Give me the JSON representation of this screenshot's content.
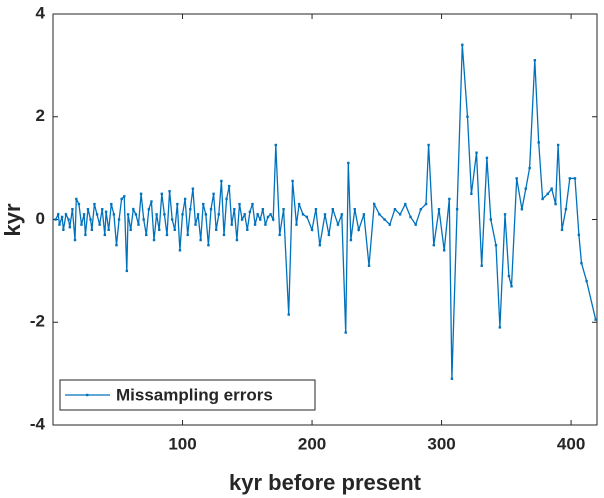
{
  "chart_data": {
    "type": "line",
    "xlabel": "kyr before present",
    "ylabel": "kyr",
    "xlim": [
      0,
      420
    ],
    "ylim": [
      -4,
      4
    ],
    "xticks": [
      100,
      200,
      300,
      400
    ],
    "yticks": [
      -4,
      -2,
      0,
      2,
      4
    ],
    "legend": "lower left",
    "series": [
      {
        "name": "Missampling errors",
        "color": "#0072bd",
        "x": [
          2,
          4,
          5,
          7,
          8,
          10,
          12,
          13,
          15,
          17,
          18,
          20,
          22,
          24,
          25,
          27,
          29,
          30,
          32,
          34,
          36,
          38,
          40,
          41,
          43,
          45,
          47,
          49,
          51,
          53,
          55,
          57,
          58,
          60,
          62,
          64,
          66,
          68,
          70,
          72,
          74,
          76,
          78,
          80,
          82,
          84,
          86,
          88,
          90,
          92,
          94,
          96,
          98,
          100,
          102,
          104,
          106,
          108,
          110,
          112,
          114,
          116,
          118,
          120,
          122,
          124,
          126,
          128,
          130,
          132,
          134,
          136,
          138,
          140,
          142,
          144,
          146,
          148,
          150,
          152,
          154,
          156,
          158,
          160,
          162,
          164,
          166,
          168,
          170,
          172,
          175,
          178,
          182,
          185,
          188,
          190,
          193,
          196,
          200,
          203,
          206,
          210,
          213,
          216,
          220,
          223,
          226,
          228,
          230,
          233,
          236,
          240,
          244,
          248,
          252,
          256,
          260,
          264,
          268,
          272,
          276,
          280,
          284,
          288,
          290,
          294,
          298,
          302,
          306,
          308,
          312,
          316,
          320,
          323,
          327,
          331,
          335,
          338,
          342,
          345,
          349,
          352,
          354,
          358,
          362,
          365,
          368,
          372,
          375,
          378,
          382,
          385,
          388,
          390,
          393,
          396,
          399,
          403,
          406,
          408,
          412,
          419
        ],
        "values": [
          0,
          0.1,
          -0.1,
          0.05,
          -0.2,
          0.1,
          0,
          -0.15,
          0.2,
          -0.4,
          0.4,
          0.3,
          -0.1,
          0.1,
          -0.3,
          0.2,
          0,
          -0.2,
          0.3,
          0.1,
          -0.1,
          0.2,
          -0.3,
          0.15,
          -0.2,
          0.3,
          0.1,
          -0.5,
          0,
          0.4,
          0.45,
          -1.0,
          0.1,
          -0.2,
          0.2,
          0.1,
          -0.1,
          0.5,
          0,
          -0.3,
          0.2,
          0.35,
          -0.4,
          0.1,
          -0.2,
          0.5,
          0.1,
          -0.3,
          0.55,
          0,
          -0.2,
          0.3,
          -0.6,
          0.1,
          0.4,
          -0.3,
          0.2,
          0.6,
          -0.1,
          0.1,
          -0.4,
          0.3,
          0.1,
          -0.5,
          0.2,
          0.5,
          -0.2,
          0.1,
          0.75,
          -0.3,
          0.4,
          0.65,
          -0.1,
          0.2,
          -0.4,
          0.3,
          0,
          0.1,
          -0.2,
          0.15,
          0.3,
          -0.1,
          0.1,
          0,
          0.2,
          -0.1,
          0.05,
          0.1,
          0,
          1.45,
          -0.3,
          0.2,
          -1.85,
          0.75,
          -0.1,
          0.3,
          0.1,
          0.05,
          -0.2,
          0.2,
          -0.5,
          0.1,
          -0.3,
          0.2,
          -0.1,
          0.1,
          -2.2,
          1.1,
          -0.4,
          0.2,
          -0.2,
          0.1,
          -0.9,
          0.3,
          0.1,
          0,
          -0.1,
          0.2,
          0.1,
          0.3,
          0.05,
          -0.1,
          0.2,
          0.3,
          1.45,
          -0.5,
          0.2,
          -0.6,
          0.4,
          -3.1,
          0.2,
          3.4,
          2.0,
          0.5,
          1.3,
          -0.9,
          1.2,
          0,
          -0.5,
          -2.1,
          0.1,
          -1.1,
          -1.3,
          0.8,
          0.2,
          0.6,
          1.0,
          3.1,
          1.5,
          0.4,
          0.5,
          0.6,
          0.3,
          1.45,
          -0.2,
          0.2,
          0.8,
          0.8,
          -0.3,
          -0.85,
          -1.2,
          -1.95
        ]
      }
    ]
  }
}
